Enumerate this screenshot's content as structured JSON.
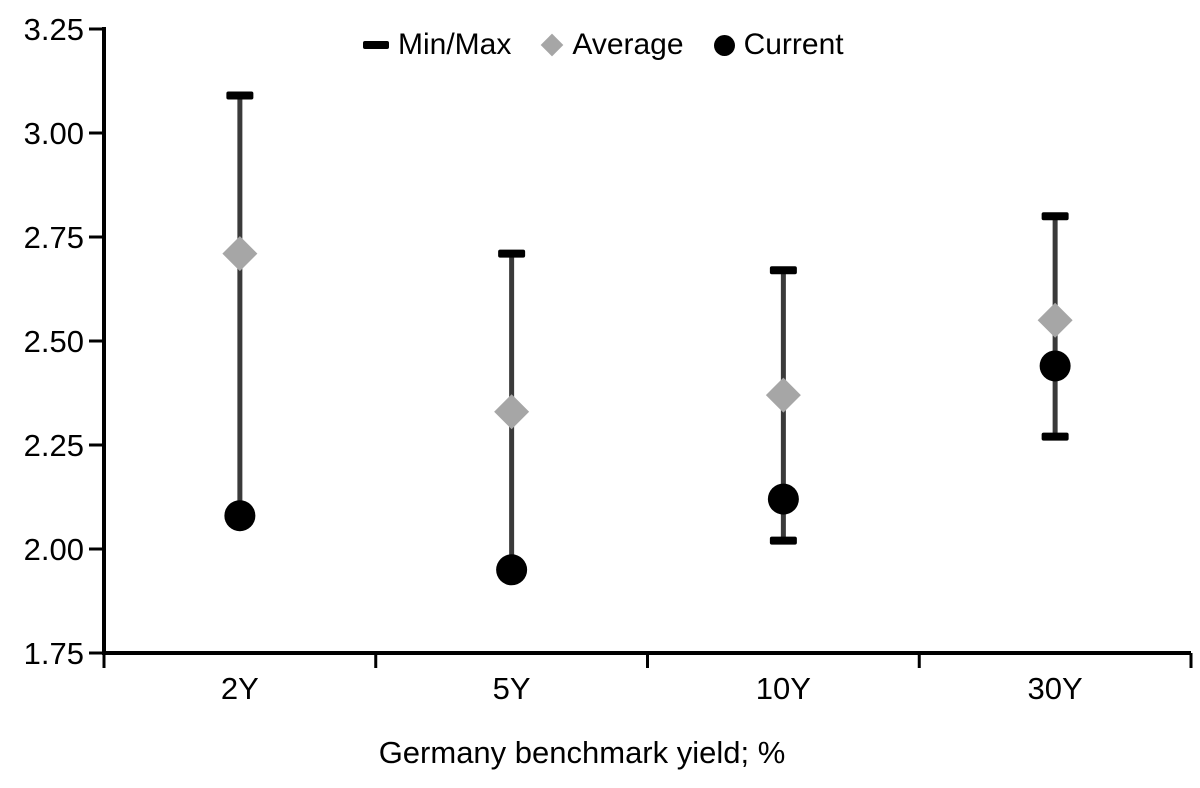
{
  "chart_data": {
    "type": "range_min_max_dot",
    "title": "",
    "xlabel": "Germany benchmark yield; %",
    "ylabel": "",
    "ylim": [
      1.75,
      3.25
    ],
    "ytick_step": 0.25,
    "ytick_labels": [
      "3.25",
      "3.00",
      "2.75",
      "2.50",
      "2.25",
      "2.00",
      "1.75"
    ],
    "categories": [
      "2Y",
      "5Y",
      "10Y",
      "30Y"
    ],
    "series": [
      {
        "name": "Min/Max",
        "marker": "dash",
        "color": "#000000",
        "max": [
          3.09,
          2.71,
          2.67,
          2.8
        ],
        "min": [
          2.08,
          1.95,
          2.02,
          2.27
        ]
      },
      {
        "name": "Average",
        "marker": "diamond",
        "color": "#a6a6a6",
        "values": [
          2.71,
          2.33,
          2.37,
          2.55
        ]
      },
      {
        "name": "Current",
        "marker": "circle",
        "color": "#000000",
        "values": [
          2.08,
          1.95,
          2.12,
          2.44
        ]
      }
    ],
    "legend": [
      {
        "label": "Min/Max",
        "marker": "dash"
      },
      {
        "label": "Average",
        "marker": "diamond"
      },
      {
        "label": "Current",
        "marker": "circle"
      }
    ],
    "legend_position": "top-center",
    "grid": false,
    "colors": {
      "range_line": "#3a3a3a",
      "cap": "#000000",
      "average": "#a6a6a6",
      "current": "#000000",
      "axis": "#000000",
      "text": "#000000",
      "background": "#ffffff"
    }
  }
}
